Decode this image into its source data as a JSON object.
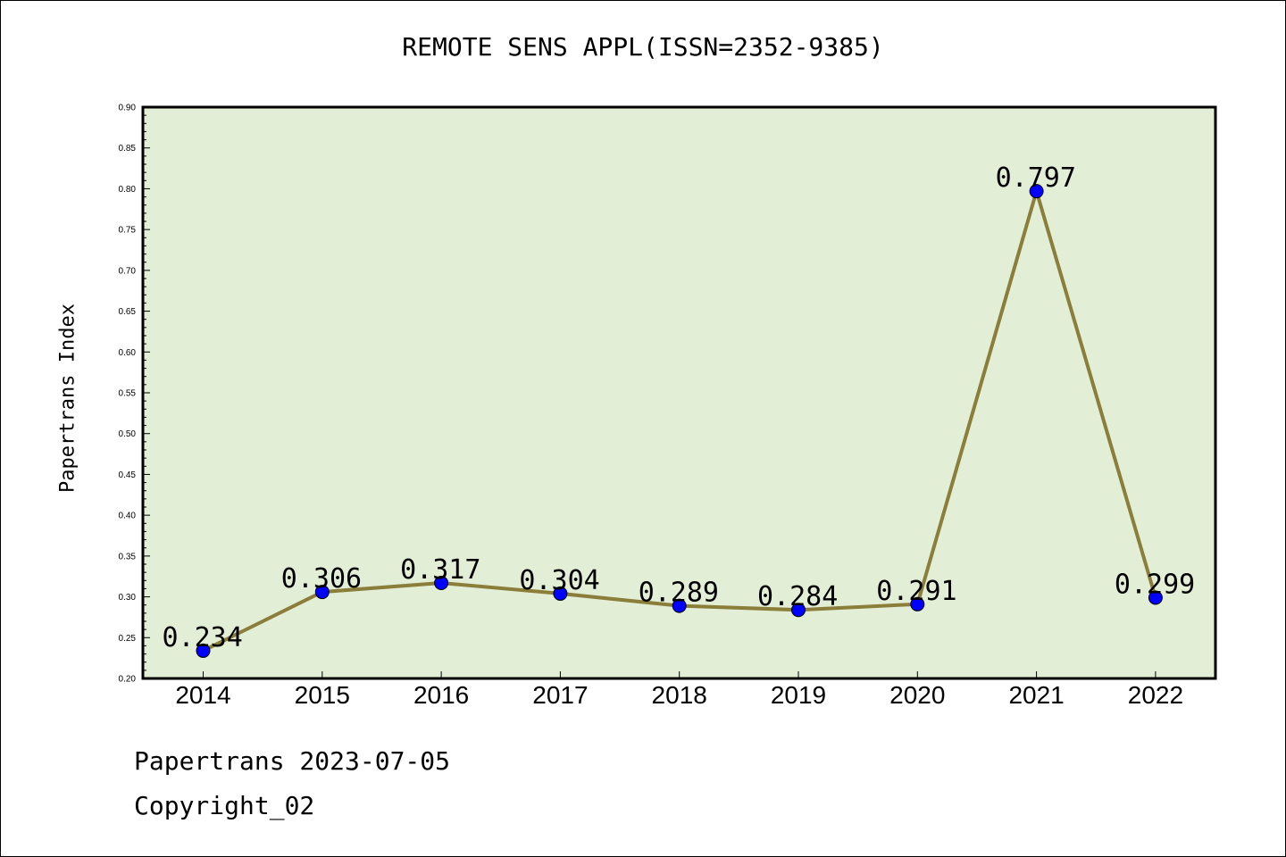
{
  "title": "REMOTE SENS APPL(ISSN=2352-9385)",
  "footer": {
    "line1": "Papertrans 2023-07-05",
    "line2": "Copyright_02"
  },
  "colors": {
    "plot_bg": "#e2efd6",
    "line": "#8b7d3a",
    "marker": "#0000ff"
  },
  "chart_data": {
    "type": "line",
    "title": "REMOTE SENS APPL(ISSN=2352-9385)",
    "xlabel": "",
    "ylabel": "Papertrans Index",
    "categories": [
      "2014",
      "2015",
      "2016",
      "2017",
      "2018",
      "2019",
      "2020",
      "2021",
      "2022"
    ],
    "series": [
      {
        "values": [
          0.234,
          0.306,
          0.317,
          0.304,
          0.289,
          0.284,
          0.291,
          0.797,
          0.299
        ],
        "labels": [
          "0.234",
          "0.306",
          "0.317",
          "0.304",
          "0.289",
          "0.284",
          "0.291",
          "0.797",
          "0.299"
        ]
      }
    ],
    "ylim": [
      0.2,
      0.9
    ],
    "yticks": [
      "0.20",
      "0.25",
      "0.30",
      "0.35",
      "0.40",
      "0.45",
      "0.50",
      "0.55",
      "0.60",
      "0.65",
      "0.70",
      "0.75",
      "0.80",
      "0.85",
      "0.90"
    ],
    "grid": false,
    "legend": "none"
  }
}
